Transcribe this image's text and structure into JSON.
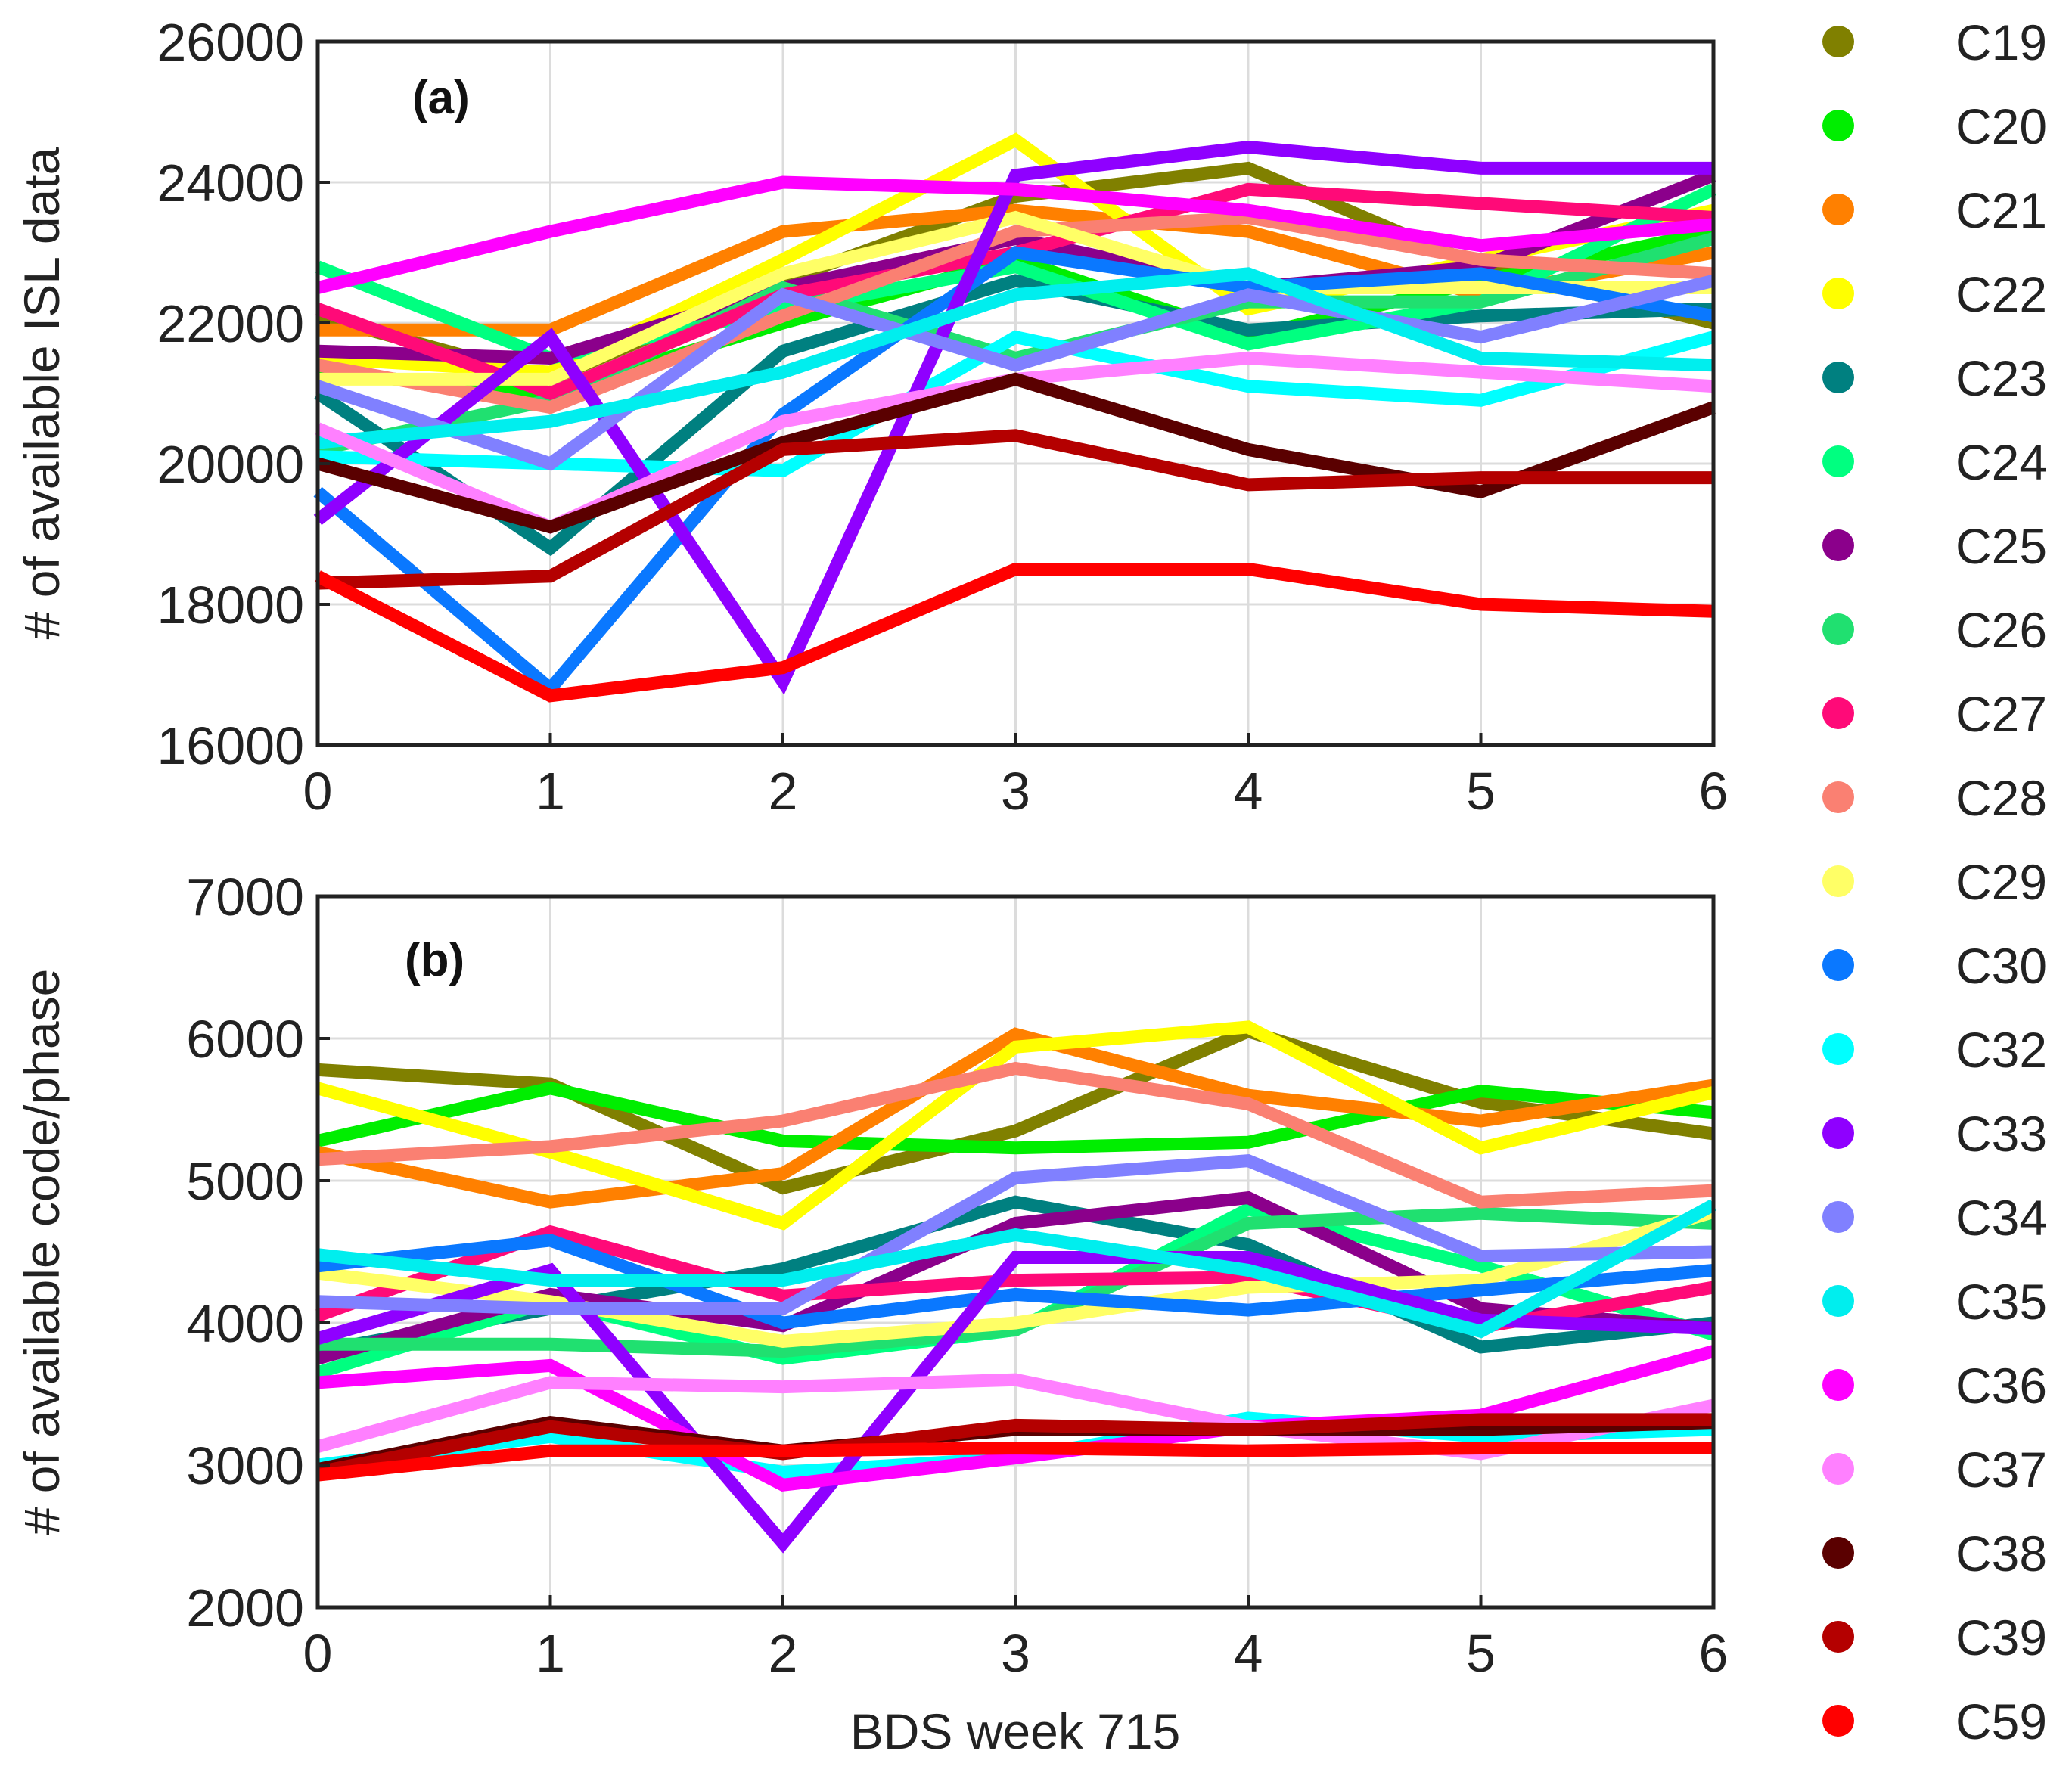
{
  "figure": {
    "xlabel": "BDS week 715"
  },
  "legend": [
    {
      "name": "C19",
      "color": "#808000"
    },
    {
      "name": "C20",
      "color": "#00ee00"
    },
    {
      "name": "C21",
      "color": "#ff8000"
    },
    {
      "name": "C22",
      "color": "#ffff00"
    },
    {
      "name": "C23",
      "color": "#008080"
    },
    {
      "name": "C24",
      "color": "#00ff80"
    },
    {
      "name": "C25",
      "color": "#8b008b"
    },
    {
      "name": "C26",
      "color": "#20e070"
    },
    {
      "name": "C27",
      "color": "#ff0a78"
    },
    {
      "name": "C28",
      "color": "#fa8072"
    },
    {
      "name": "C29",
      "color": "#ffff66"
    },
    {
      "name": "C30",
      "color": "#0a78ff"
    },
    {
      "name": "C32",
      "color": "#00ffff"
    },
    {
      "name": "C33",
      "color": "#8f00ff"
    },
    {
      "name": "C34",
      "color": "#8080ff"
    },
    {
      "name": "C35",
      "color": "#00eeee"
    },
    {
      "name": "C36",
      "color": "#ff00ff"
    },
    {
      "name": "C37",
      "color": "#ff80ff"
    },
    {
      "name": "C38",
      "color": "#5a0000"
    },
    {
      "name": "C39",
      "color": "#b40000"
    },
    {
      "name": "C59",
      "color": "#ff0000"
    }
  ],
  "chart_data": [
    {
      "type": "line",
      "panel_label": "(a)",
      "title": "",
      "xlabel": "",
      "ylabel": "# of available ISL data",
      "x": [
        0,
        1,
        2,
        3,
        4,
        5,
        6
      ],
      "xticks": [
        "0",
        "1",
        "2",
        "3",
        "4",
        "5",
        "6"
      ],
      "xlim": [
        0,
        6
      ],
      "ylim": [
        16000,
        26000
      ],
      "yticks": [
        "16000",
        "18000",
        "20000",
        "22000",
        "24000",
        "26000"
      ],
      "grid": true,
      "series": [
        {
          "name": "C19",
          "values": [
            22100,
            21200,
            22600,
            23800,
            24200,
            22800,
            22000
          ]
        },
        {
          "name": "C20",
          "values": [
            21300,
            21000,
            22000,
            22900,
            21800,
            22600,
            23300
          ]
        },
        {
          "name": "C21",
          "values": [
            21900,
            21900,
            23300,
            23600,
            23300,
            22400,
            23000
          ]
        },
        {
          "name": "C22",
          "values": [
            21500,
            21300,
            22900,
            24600,
            22200,
            22900,
            23600
          ]
        },
        {
          "name": "C23",
          "values": [
            21000,
            18800,
            21600,
            22600,
            21900,
            22100,
            22200
          ]
        },
        {
          "name": "C24",
          "values": [
            22800,
            21500,
            22200,
            22800,
            21700,
            22300,
            23900
          ]
        },
        {
          "name": "C25",
          "values": [
            21600,
            21500,
            22500,
            23200,
            22500,
            22800,
            24100
          ]
        },
        {
          "name": "C26",
          "values": [
            20200,
            20900,
            22500,
            21500,
            22300,
            22300,
            23200
          ]
        },
        {
          "name": "C27",
          "values": [
            22200,
            21000,
            22400,
            23000,
            23900,
            23700,
            23500
          ]
        },
        {
          "name": "C28",
          "values": [
            21400,
            20800,
            22100,
            23300,
            23500,
            22900,
            22700
          ]
        },
        {
          "name": "C29",
          "values": [
            21200,
            21200,
            22700,
            23500,
            22500,
            22500,
            22500
          ]
        },
        {
          "name": "C30",
          "values": [
            19600,
            16800,
            20700,
            23000,
            22500,
            22700,
            22100
          ]
        },
        {
          "name": "C32",
          "values": [
            20100,
            20000,
            19900,
            21800,
            21100,
            20900,
            21800
          ]
        },
        {
          "name": "C33",
          "values": [
            19200,
            21800,
            16900,
            24100,
            24500,
            24200,
            24200
          ]
        },
        {
          "name": "C34",
          "values": [
            21100,
            20000,
            22400,
            21400,
            22400,
            21800,
            22600
          ]
        },
        {
          "name": "C35",
          "values": [
            20300,
            20600,
            21300,
            22400,
            22700,
            21500,
            21400
          ]
        },
        {
          "name": "C36",
          "values": [
            22500,
            23300,
            24000,
            23900,
            23600,
            23100,
            23400
          ]
        },
        {
          "name": "C37",
          "values": [
            20500,
            19100,
            20600,
            21200,
            21500,
            21300,
            21100
          ]
        },
        {
          "name": "C38",
          "values": [
            20000,
            19100,
            20300,
            21200,
            20200,
            19600,
            20800
          ]
        },
        {
          "name": "C39",
          "values": [
            18300,
            18400,
            20200,
            20400,
            19700,
            19800,
            19800
          ]
        },
        {
          "name": "C59",
          "values": [
            18400,
            16700,
            17100,
            18500,
            18500,
            18000,
            17900
          ]
        }
      ]
    },
    {
      "type": "line",
      "panel_label": "(b)",
      "title": "",
      "xlabel": "BDS week 715",
      "ylabel": "# of available code/phase",
      "x": [
        0,
        1,
        2,
        3,
        4,
        5,
        6
      ],
      "xticks": [
        "0",
        "1",
        "2",
        "3",
        "4",
        "5",
        "6"
      ],
      "xlim": [
        0,
        6
      ],
      "ylim": [
        2000,
        7000
      ],
      "yticks": [
        "2000",
        "3000",
        "4000",
        "5000",
        "6000",
        "7000"
      ],
      "grid": true,
      "series": [
        {
          "name": "C19",
          "values": [
            5780,
            5680,
            4950,
            5350,
            6050,
            5550,
            5330
          ]
        },
        {
          "name": "C20",
          "values": [
            5280,
            5650,
            5280,
            5230,
            5270,
            5630,
            5480
          ]
        },
        {
          "name": "C21",
          "values": [
            5200,
            4850,
            5050,
            6030,
            5600,
            5420,
            5670
          ]
        },
        {
          "name": "C22",
          "values": [
            5650,
            5200,
            4700,
            5940,
            6080,
            5230,
            5620
          ]
        },
        {
          "name": "C23",
          "values": [
            3800,
            4100,
            4380,
            4850,
            4550,
            3830,
            4000
          ]
        },
        {
          "name": "C24",
          "values": [
            3650,
            4150,
            3750,
            3950,
            4800,
            4400,
            3920
          ]
        },
        {
          "name": "C25",
          "values": [
            3750,
            4200,
            3980,
            4700,
            4880,
            4100,
            3960
          ]
        },
        {
          "name": "C26",
          "values": [
            3850,
            3850,
            3800,
            3950,
            4700,
            4770,
            4700
          ]
        },
        {
          "name": "C27",
          "values": [
            4050,
            4640,
            4190,
            4300,
            4320,
            3970,
            4250
          ]
        },
        {
          "name": "C28",
          "values": [
            5150,
            5240,
            5420,
            5790,
            5540,
            4850,
            4930
          ]
        },
        {
          "name": "C29",
          "values": [
            4350,
            4150,
            3870,
            4000,
            4250,
            4300,
            4780
          ]
        },
        {
          "name": "C30",
          "values": [
            4400,
            4580,
            4000,
            4200,
            4090,
            4230,
            4370
          ]
        },
        {
          "name": "C32",
          "values": [
            3000,
            3200,
            2950,
            3050,
            3330,
            3200,
            3250
          ]
        },
        {
          "name": "C33",
          "values": [
            3890,
            4370,
            2450,
            4460,
            4460,
            4020,
            3960
          ]
        },
        {
          "name": "C34",
          "values": [
            4150,
            4100,
            4100,
            5020,
            5140,
            4470,
            4500
          ]
        },
        {
          "name": "C35",
          "values": [
            4480,
            4300,
            4300,
            4620,
            4370,
            3940,
            4830
          ]
        },
        {
          "name": "C36",
          "values": [
            3580,
            3700,
            2860,
            3050,
            3270,
            3350,
            3800
          ]
        },
        {
          "name": "C37",
          "values": [
            3130,
            3580,
            3550,
            3600,
            3270,
            3080,
            3420
          ]
        },
        {
          "name": "C38",
          "values": [
            2970,
            3300,
            3100,
            3250,
            3250,
            3250,
            3300
          ]
        },
        {
          "name": "C39",
          "values": [
            2950,
            3270,
            3080,
            3280,
            3250,
            3320,
            3320
          ]
        },
        {
          "name": "C59",
          "values": [
            2930,
            3100,
            3100,
            3120,
            3100,
            3120,
            3120
          ]
        }
      ]
    }
  ]
}
